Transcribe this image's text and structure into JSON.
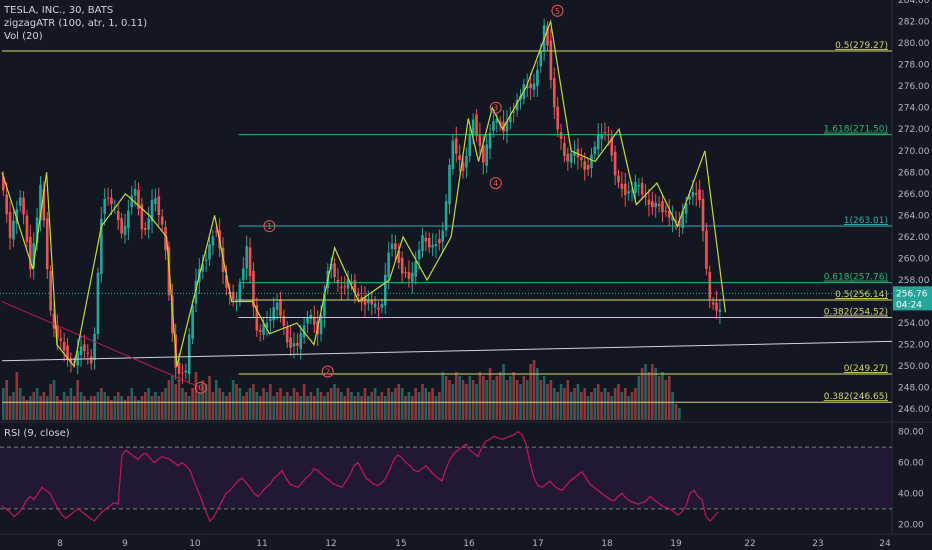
{
  "legend": {
    "symbol": "TESLA, INC., 30, BATS",
    "indicator1": "zigzagATR (100, atr, 1, 0.11)",
    "indicator2": "Vol (20)",
    "rsi": "RSI (9, close)"
  },
  "price_box": {
    "value": "256.76",
    "time": "04:24"
  },
  "colors": {
    "background": "#131722",
    "up": "#26a69a",
    "down": "#ef5350",
    "zigzag": "#c6d93a",
    "fib_yellow": "#d4d46a",
    "fib_green": "#27b873",
    "fib_cyan": "#2fb0a8",
    "rsi_line": "#c2185b",
    "rsi_band": "#2a1a3a"
  },
  "chart_data": [
    {
      "type": "candlestick",
      "title": "TESLA, INC., 30, BATS",
      "ylim": [
        245,
        284
      ],
      "y_ticks": [
        "284.00",
        "282.00",
        "280.00",
        "278.00",
        "276.00",
        "274.00",
        "272.00",
        "270.00",
        "268.00",
        "266.00",
        "264.00",
        "262.00",
        "260.00",
        "258.00",
        "256.00",
        "254.00",
        "252.00",
        "250.00",
        "248.00",
        "246.00"
      ],
      "x_ticks": [
        "8",
        "9",
        "10",
        "11",
        "12",
        "15",
        "16",
        "17",
        "18",
        "19",
        "22",
        "23",
        "24"
      ],
      "price_path": [
        [
          0,
          268
        ],
        [
          3,
          262
        ],
        [
          6,
          266
        ],
        [
          9,
          259
        ],
        [
          12,
          267
        ],
        [
          15,
          254
        ],
        [
          18,
          252
        ],
        [
          21,
          250
        ],
        [
          24,
          252
        ],
        [
          27,
          250
        ],
        [
          30,
          266
        ],
        [
          33,
          265
        ],
        [
          36,
          262
        ],
        [
          39,
          267
        ],
        [
          42,
          262
        ],
        [
          45,
          266
        ],
        [
          48,
          262
        ],
        [
          51,
          250
        ],
        [
          54,
          249
        ],
        [
          57,
          258
        ],
        [
          60,
          260
        ],
        [
          63,
          263
        ],
        [
          66,
          257
        ],
        [
          69,
          256
        ],
        [
          72,
          261
        ],
        [
          75,
          253
        ],
        [
          78,
          254
        ],
        [
          81,
          256
        ],
        [
          84,
          252
        ],
        [
          87,
          252
        ],
        [
          90,
          255
        ],
        [
          93,
          253
        ],
        [
          96,
          260
        ],
        [
          99,
          257
        ],
        [
          102,
          258
        ],
        [
          105,
          256
        ],
        [
          108,
          256
        ],
        [
          111,
          255
        ],
        [
          114,
          262
        ],
        [
          117,
          259
        ],
        [
          120,
          258
        ],
        [
          123,
          262
        ],
        [
          126,
          261
        ],
        [
          129,
          262
        ],
        [
          132,
          271
        ],
        [
          135,
          268
        ],
        [
          138,
          273
        ],
        [
          141,
          269
        ],
        [
          144,
          273
        ],
        [
          147,
          272
        ],
        [
          150,
          274
        ],
        [
          153,
          276
        ],
        [
          156,
          276
        ],
        [
          159,
          282
        ],
        [
          162,
          273
        ],
        [
          165,
          269
        ],
        [
          168,
          270
        ],
        [
          171,
          268
        ],
        [
          174,
          271
        ],
        [
          177,
          272
        ],
        [
          180,
          267
        ],
        [
          183,
          266
        ],
        [
          186,
          267
        ],
        [
          189,
          265
        ],
        [
          192,
          265
        ],
        [
          195,
          264
        ],
        [
          198,
          263
        ],
        [
          201,
          266
        ],
        [
          204,
          266
        ],
        [
          207,
          256
        ],
        [
          210,
          255
        ]
      ],
      "zigzag": [
        [
          0,
          268
        ],
        [
          9,
          259
        ],
        [
          13,
          268
        ],
        [
          16,
          252
        ],
        [
          21,
          250
        ],
        [
          29,
          263
        ],
        [
          36,
          266
        ],
        [
          43,
          264
        ],
        [
          48,
          262
        ],
        [
          51,
          250
        ],
        [
          58,
          259
        ],
        [
          62,
          264
        ],
        [
          67,
          256
        ],
        [
          73,
          256
        ],
        [
          78,
          253
        ],
        [
          86,
          254
        ],
        [
          91,
          252
        ],
        [
          97,
          261
        ],
        [
          104,
          256
        ],
        [
          113,
          258
        ],
        [
          117,
          262
        ],
        [
          124,
          258
        ],
        [
          131,
          262
        ],
        [
          136,
          273
        ],
        [
          139,
          269
        ],
        [
          143,
          274
        ],
        [
          146,
          272
        ],
        [
          153,
          276
        ],
        [
          160,
          282
        ],
        [
          166,
          270
        ],
        [
          173,
          269
        ],
        [
          180,
          272
        ],
        [
          185,
          265
        ],
        [
          191,
          267
        ],
        [
          197,
          263
        ],
        [
          205,
          270
        ],
        [
          211,
          255
        ]
      ],
      "wave_labels": [
        {
          "text": "1",
          "x": 78,
          "y": 263
        },
        {
          "text": "2",
          "x": 95,
          "y": 249.5
        },
        {
          "text": "3",
          "x": 144,
          "y": 274
        },
        {
          "text": "4",
          "x": 144,
          "y": 267
        },
        {
          "text": "5",
          "x": 162,
          "y": 283
        },
        {
          "text": "0",
          "x": 58,
          "y": 248
        }
      ],
      "fib_levels": [
        {
          "label": "0.5(279.27)",
          "price": 279.27,
          "color": "yellow",
          "start": 0
        },
        {
          "label": "1.618(271.50)",
          "price": 271.5,
          "color": "green",
          "start": 69
        },
        {
          "label": "1(263.01)",
          "price": 263.01,
          "color": "cyan",
          "start": 69
        },
        {
          "label": "0.618(257.76)",
          "price": 257.76,
          "color": "green",
          "start": 69
        },
        {
          "label": "0.5(256.14)",
          "price": 256.14,
          "color": "yellow",
          "start": 69
        },
        {
          "label": "0.382(254.52)",
          "price": 254.52,
          "color": "yellow",
          "start": 69
        },
        {
          "label": "0(249.27)",
          "price": 249.27,
          "color": "yellow",
          "start": 69
        },
        {
          "label": "0.382(246.65)",
          "price": 246.65,
          "color": "yellow",
          "start": 0
        }
      ],
      "trendlines": [
        {
          "from": [
            0,
            250.5
          ],
          "to": [
            271,
            252.3
          ],
          "color": "white"
        },
        {
          "from": [
            0,
            256
          ],
          "to": [
            58,
            248
          ],
          "color": "red"
        }
      ],
      "volume_profile_note": "",
      "volume": [
        0.4,
        0.5,
        0.3,
        0.35,
        0.6,
        0.4,
        0.3,
        0.25,
        0.3,
        0.35,
        0.4,
        0.3,
        0.35,
        0.3,
        0.45,
        0.5,
        0.3,
        0.25,
        0.35,
        0.3,
        0.4,
        0.3,
        0.5,
        0.35,
        0.3,
        0.25,
        0.3,
        0.3,
        0.35,
        0.4,
        0.35,
        0.3,
        0.25,
        0.3,
        0.35,
        0.3,
        0.25,
        0.3,
        0.4,
        0.3,
        0.25,
        0.3,
        0.35,
        0.4,
        0.3,
        0.35,
        0.3,
        0.35,
        0.4,
        0.5,
        0.55,
        0.45,
        0.5,
        0.4,
        0.35,
        0.3,
        0.4,
        0.6,
        0.35,
        0.5,
        0.45,
        0.55,
        0.35,
        0.5,
        0.4,
        0.35,
        0.3,
        0.35,
        0.5,
        0.45,
        0.4,
        0.3,
        0.35,
        0.4,
        0.45,
        0.35,
        0.3,
        0.4,
        0.35,
        0.45,
        0.3,
        0.35,
        0.4,
        0.3,
        0.35,
        0.3,
        0.4,
        0.35,
        0.3,
        0.45,
        0.3,
        0.35,
        0.3,
        0.4,
        0.35,
        0.3,
        0.35,
        0.4,
        0.45,
        0.4,
        0.35,
        0.3,
        0.4,
        0.35,
        0.3,
        0.35,
        0.3,
        0.4,
        0.3,
        0.35,
        0.4,
        0.3,
        0.35,
        0.3,
        0.4,
        0.35,
        0.4,
        0.45,
        0.4,
        0.3,
        0.35,
        0.3,
        0.4,
        0.35,
        0.45,
        0.4,
        0.35,
        0.4,
        0.3,
        0.35,
        0.6,
        0.55,
        0.5,
        0.45,
        0.6,
        0.55,
        0.5,
        0.45,
        0.55,
        0.5,
        0.45,
        0.6,
        0.55,
        0.5,
        0.65,
        0.5,
        0.55,
        0.6,
        0.7,
        0.5,
        0.55,
        0.6,
        0.5,
        0.45,
        0.55,
        0.5,
        0.7,
        0.75,
        0.65,
        0.5,
        0.55,
        0.45,
        0.5,
        0.4,
        0.35,
        0.45,
        0.4,
        0.5,
        0.35,
        0.4,
        0.45,
        0.35,
        0.4,
        0.3,
        0.35,
        0.4,
        0.45,
        0.35,
        0.4,
        0.35,
        0.3,
        0.4,
        0.45,
        0.35,
        0.4,
        0.3,
        0.35,
        0.4,
        0.55,
        0.65,
        0.7,
        0.6,
        0.7,
        0.65,
        0.55,
        0.6,
        0.5,
        0.55,
        0.35,
        0.2,
        0.15
      ]
    },
    {
      "type": "line",
      "title": "RSI (9, close)",
      "ylim": [
        15,
        85
      ],
      "y_ticks": [
        "80.00",
        "60.00",
        "40.00",
        "20.00"
      ],
      "bands": [
        30,
        70
      ],
      "values": [
        32,
        30,
        28,
        25,
        27,
        30,
        35,
        38,
        36,
        40,
        44,
        42,
        40,
        35,
        30,
        26,
        24,
        26,
        28,
        30,
        28,
        26,
        24,
        22,
        25,
        28,
        30,
        32,
        34,
        33,
        65,
        68,
        66,
        64,
        62,
        65,
        66,
        63,
        60,
        62,
        64,
        63,
        62,
        60,
        58,
        60,
        58,
        55,
        48,
        42,
        35,
        28,
        22,
        25,
        30,
        35,
        40,
        42,
        45,
        48,
        50,
        47,
        44,
        40,
        38,
        41,
        44,
        46,
        50,
        52,
        55,
        50,
        46,
        45,
        44,
        47,
        50,
        52,
        56,
        55,
        52,
        50,
        48,
        46,
        45,
        44,
        48,
        52,
        58,
        60,
        55,
        50,
        48,
        46,
        45,
        47,
        50,
        56,
        62,
        65,
        63,
        60,
        58,
        55,
        54,
        56,
        58,
        55,
        52,
        50,
        48,
        56,
        62,
        66,
        68,
        70,
        72,
        68,
        66,
        64,
        70,
        74,
        75,
        77,
        76,
        75,
        76,
        77,
        78,
        80,
        78,
        72,
        60,
        50,
        45,
        44,
        46,
        48,
        45,
        43,
        42,
        45,
        48,
        50,
        52,
        54,
        50,
        46,
        44,
        42,
        40,
        38,
        36,
        35,
        38,
        40,
        37,
        35,
        34,
        33,
        34,
        35,
        38,
        36,
        34,
        32,
        31,
        30,
        28,
        26,
        28,
        32,
        40,
        42,
        38,
        36,
        25,
        22,
        25,
        28
      ]
    }
  ]
}
